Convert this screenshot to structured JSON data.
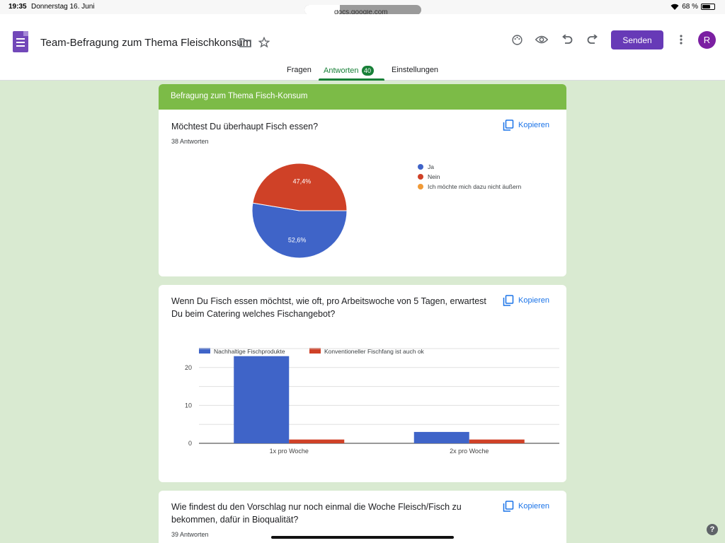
{
  "status": {
    "time": "19:35",
    "date": "Donnerstag 16. Juni",
    "url": "docs.google.com",
    "battery": "68 %",
    "battery_level": 0.68
  },
  "header": {
    "title": "Team-Befragung zum Thema Fleischkonsum",
    "send_label": "Senden",
    "avatar_letter": "R",
    "icons": [
      "folder-icon",
      "star-icon",
      "palette-icon",
      "eye-icon",
      "undo-icon",
      "redo-icon",
      "more-vert-icon"
    ]
  },
  "tabs": {
    "questions": "Fragen",
    "responses": "Antworten",
    "responses_count": "40",
    "settings": "Einstellungen"
  },
  "colors": {
    "accent": "#188038",
    "brand": "#673ab7",
    "section": "#7cbb47",
    "blue": "#3f64c8",
    "red": "#cf4127",
    "orange": "#f09a37"
  },
  "section": {
    "title": "Befragung zum Thema Fisch-Konsum"
  },
  "copy_label": "Kopieren",
  "questions": [
    {
      "title": "Möchtest Du überhaupt Fisch essen?",
      "count": "38 Antworten",
      "legend": [
        "Ja",
        "Nein",
        "Ich möchte mich dazu nicht äußern"
      ]
    },
    {
      "title_line1": "Wenn Du Fisch essen möchtst, wie oft, pro Arbeitswoche von 5 Tagen, erwartest",
      "title_line2": "Du beim Catering welches Fischangebot?",
      "legend": [
        "Nachhaltige Fischprodukte",
        "Konventioneller Fischfang ist auch ok"
      ]
    },
    {
      "title_line1": "Wie findest du den Vorschlag nur noch einmal die Woche Fleisch/Fisch zu",
      "title_line2": "bekommen, dafür in Bioqualität?",
      "count": "39 Antworten"
    }
  ],
  "chart_data": [
    {
      "type": "pie",
      "categories": [
        "Ja",
        "Nein",
        "Ich möchte mich dazu nicht äußern"
      ],
      "values": [
        52.6,
        47.4,
        0
      ],
      "labels": [
        "52,6%",
        "47,4%"
      ],
      "colors": [
        "#3f64c8",
        "#cf4127",
        "#f09a37"
      ],
      "legend_position": "right"
    },
    {
      "type": "bar",
      "categories": [
        "1x pro Woche",
        "2x pro Woche"
      ],
      "series": [
        {
          "name": "Nachhaltige Fischprodukte",
          "values": [
            23,
            3
          ],
          "color": "#3f64c8"
        },
        {
          "name": "Konventioneller Fischfang ist auch ok",
          "values": [
            1,
            1
          ],
          "color": "#cf4127"
        }
      ],
      "ylim": [
        0,
        25
      ],
      "yticks": [
        "0",
        "10",
        "20"
      ],
      "ytick_values": [
        0,
        10,
        20
      ],
      "grid": true,
      "legend_position": "top"
    }
  ]
}
